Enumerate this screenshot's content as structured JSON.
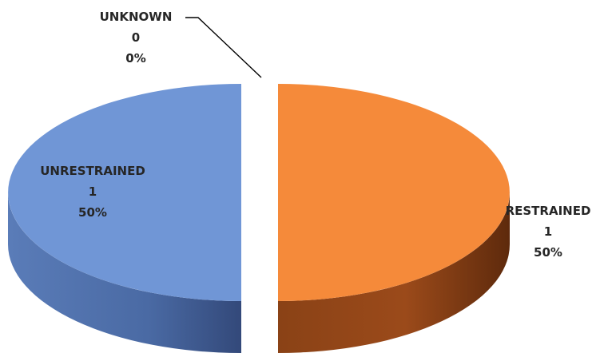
{
  "chart_data": {
    "type": "pie",
    "title": "",
    "style": "3d-exploded",
    "slices": [
      {
        "label": "RESTRAINED",
        "value": 1,
        "percent": "50%",
        "color": "#f58a3a",
        "side_color": "#7a3a10"
      },
      {
        "label": "UNRESTRAINED",
        "value": 1,
        "percent": "50%",
        "color": "#7096d6",
        "side_color": "#46649a"
      },
      {
        "label": "UNKNOWN",
        "value": 0,
        "percent": "0%",
        "color": "#a5a5a5",
        "side_color": "#6f6f6f"
      }
    ],
    "legend": "none",
    "data_labels": "category, value, percent"
  }
}
